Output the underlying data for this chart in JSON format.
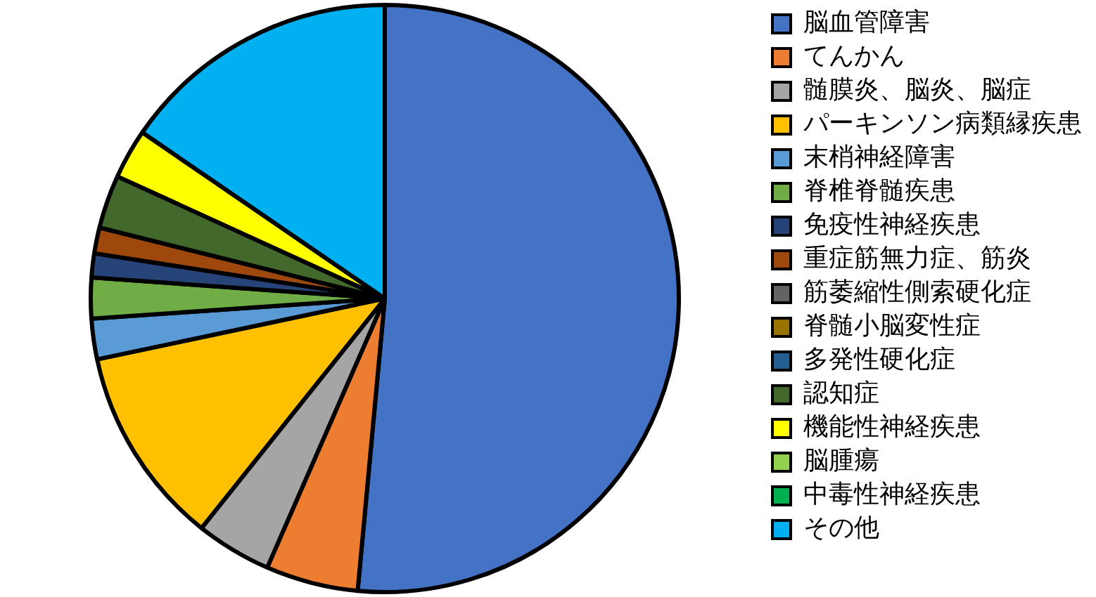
{
  "chart_data": {
    "type": "pie",
    "legend": "right",
    "categories": [
      "脳血管障害",
      "てんかん",
      "髄膜炎、脳炎、脳症",
      "パーキンソン病類縁疾患",
      "末梢神経障害",
      "脊椎脊髄疾患",
      "免疫性神経疾患",
      "重症筋無力症、筋炎",
      "筋萎縮性側索硬化症",
      "脊髄小脳変性症",
      "多発性硬化症",
      "認知症",
      "機能性神経疾患",
      "脳腫瘍",
      "中毒性神経疾患",
      "その他"
    ],
    "values": [
      50.7,
      5.0,
      4.1,
      10.8,
      2.2,
      2.2,
      1.3,
      1.4,
      null,
      null,
      null,
      2.9,
      2.7,
      null,
      null,
      15.2
    ],
    "colors": [
      "#4472c4",
      "#ed7d31",
      "#a5a5a5",
      "#ffc000",
      "#5b9bd5",
      "#70ad47",
      "#264478",
      "#9e480e",
      "#636363",
      "#997300",
      "#255e91",
      "#43682b",
      "#ffff00",
      "#92d050",
      "#00b050",
      "#00b0f0"
    ]
  }
}
